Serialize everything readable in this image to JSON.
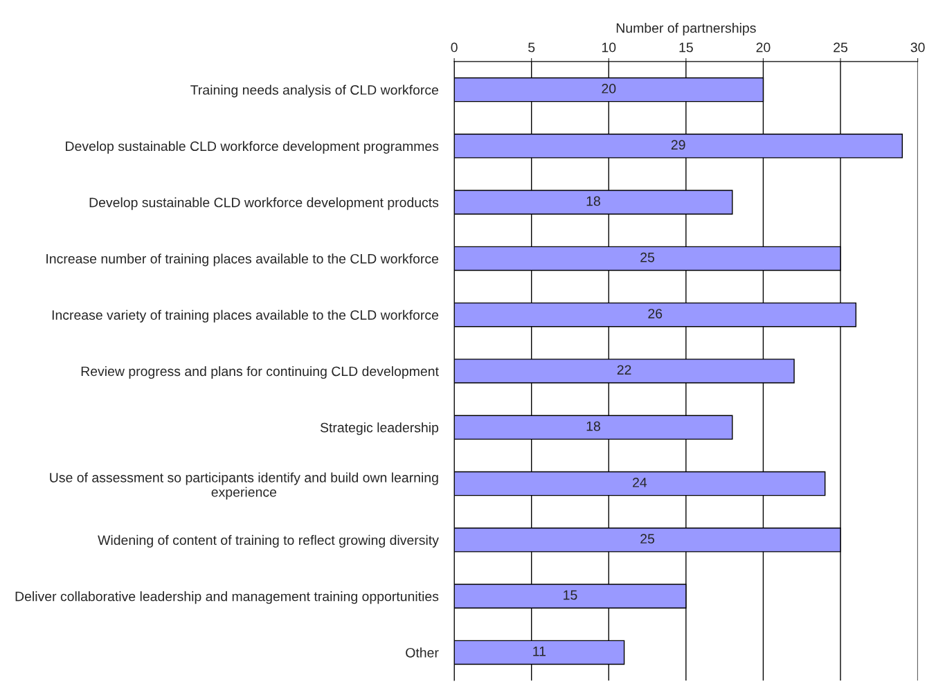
{
  "chart_data": {
    "type": "bar",
    "orientation": "horizontal",
    "xlabel": "Number of partnerships",
    "categories": [
      "Training needs analysis of CLD workforce",
      "Develop sustainable CLD workforce development programmes",
      "Develop sustainable CLD workforce development products",
      "Increase number of training places available to the CLD workforce",
      "Increase variety of training places available to the CLD workforce",
      "Review progress and plans for continuing CLD development",
      "Strategic leadership",
      "Use of assessment so participants identify and build own learning experience",
      "Widening of content of training to reflect growing diversity",
      "Deliver collaborative leadership and management training opportunities",
      "Other"
    ],
    "values": [
      20,
      29,
      18,
      25,
      26,
      22,
      18,
      24,
      25,
      15,
      11
    ],
    "color": "#9999ff",
    "xlim": [
      0,
      30
    ],
    "xticks": [
      0,
      5,
      10,
      15,
      20,
      25,
      30
    ],
    "grid": "x",
    "data_labels": true
  }
}
